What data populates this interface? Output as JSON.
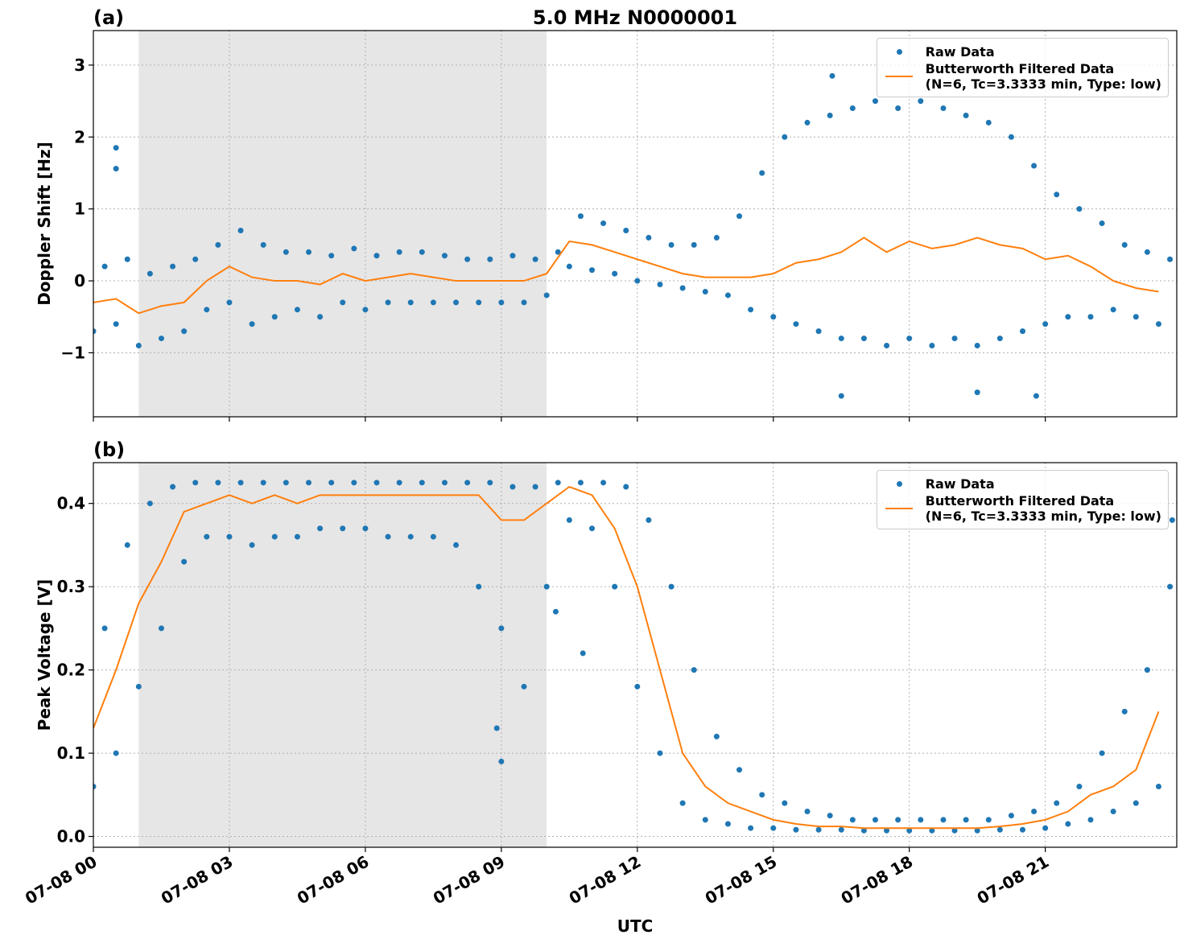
{
  "chart_data": [
    {
      "type": "scatter-line",
      "title": "5.0 MHz N0000001",
      "panel_label": "(a)",
      "ylabel": "Doppler Shift [Hz]",
      "xlim": [
        0,
        23.9
      ],
      "ylim": [
        -1.89,
        3.48
      ],
      "yticks": [
        {
          "value": -1,
          "label": "−1"
        },
        0,
        1,
        2,
        3
      ],
      "grid": true,
      "legend": "upper right",
      "shade": [
        1,
        10
      ],
      "shade_color": "#e6e6e6",
      "series": [
        {
          "name": "Raw Data",
          "color": "#1f77b4",
          "kind": "scatter",
          "x": [
            0,
            0.25,
            0.5,
            0.75,
            1,
            1.25,
            1.5,
            1.75,
            2,
            2.25,
            2.5,
            2.75,
            3,
            3.25,
            3.5,
            3.75,
            4,
            4.25,
            4.5,
            4.75,
            5,
            5.25,
            5.5,
            5.75,
            6,
            6.25,
            6.5,
            6.75,
            7,
            7.25,
            7.5,
            7.75,
            8,
            8.25,
            8.5,
            8.75,
            9,
            9.25,
            9.5,
            9.75,
            10,
            10.25,
            10.5,
            10.75,
            11,
            11.25,
            11.5,
            11.75,
            12,
            12.25,
            12.5,
            12.75,
            13,
            13.25,
            13.5,
            13.75,
            14,
            14.25,
            14.5,
            14.75,
            15,
            15.25,
            15.5,
            15.75,
            16,
            16.25,
            16.5,
            16.75,
            17,
            17.25,
            17.5,
            17.75,
            18,
            18.25,
            18.5,
            18.75,
            19,
            19.25,
            19.5,
            19.75,
            20,
            20.25,
            20.5,
            20.75,
            21,
            21.25,
            21.5,
            21.75,
            22,
            22.25,
            22.5,
            22.75,
            23,
            23.25,
            23.5,
            23.75,
            0.5,
            0.5,
            16.5,
            19.5,
            20.8,
            16.3
          ],
          "values": [
            -0.7,
            0.2,
            -0.6,
            0.3,
            -0.9,
            0.1,
            -0.8,
            0.2,
            -0.7,
            0.3,
            -0.4,
            0.5,
            -0.3,
            0.7,
            -0.6,
            0.5,
            -0.5,
            0.4,
            -0.4,
            0.4,
            -0.5,
            0.35,
            -0.3,
            0.45,
            -0.4,
            0.35,
            -0.3,
            0.4,
            -0.3,
            0.4,
            -0.3,
            0.35,
            -0.3,
            0.3,
            -0.3,
            0.3,
            -0.3,
            0.35,
            -0.3,
            0.3,
            -0.2,
            0.4,
            0.2,
            0.9,
            0.15,
            0.8,
            0.1,
            0.7,
            0.0,
            0.6,
            -0.05,
            0.5,
            -0.1,
            0.5,
            -0.15,
            0.6,
            -0.2,
            0.9,
            -0.4,
            1.5,
            -0.5,
            2.0,
            -0.6,
            2.2,
            -0.7,
            2.3,
            -0.8,
            2.4,
            -0.8,
            2.5,
            -0.9,
            2.4,
            -0.8,
            2.5,
            -0.9,
            2.4,
            -0.8,
            2.3,
            -0.9,
            2.2,
            -0.8,
            2.0,
            -0.7,
            1.6,
            -0.6,
            1.2,
            -0.5,
            1.0,
            -0.5,
            0.8,
            -0.4,
            0.5,
            -0.5,
            0.4,
            -0.6,
            0.3,
            1.85,
            1.56,
            -1.6,
            -1.55,
            -1.6,
            2.85
          ]
        },
        {
          "name": "Butterworth Filtered Data\n(N=6, Tc=3.3333 min, Type: low)",
          "color": "#ff7f0e",
          "kind": "line",
          "x": [
            0,
            0.5,
            1,
            1.5,
            2,
            2.5,
            3,
            3.5,
            4,
            4.5,
            5,
            5.5,
            6,
            6.5,
            7,
            7.5,
            8,
            8.5,
            9,
            9.5,
            10,
            10.5,
            11,
            11.5,
            12,
            12.5,
            13,
            13.5,
            14,
            14.5,
            15,
            15.5,
            16,
            16.5,
            17,
            17.5,
            18,
            18.5,
            19,
            19.5,
            20,
            20.5,
            21,
            21.5,
            22,
            22.5,
            23,
            23.5
          ],
          "values": [
            -0.3,
            -0.25,
            -0.45,
            -0.35,
            -0.3,
            0.0,
            0.2,
            0.05,
            0.0,
            0.0,
            -0.05,
            0.1,
            0.0,
            0.05,
            0.1,
            0.05,
            0.0,
            0.0,
            0.0,
            0.0,
            0.1,
            0.55,
            0.5,
            0.4,
            0.3,
            0.2,
            0.1,
            0.05,
            0.05,
            0.05,
            0.1,
            0.25,
            0.3,
            0.4,
            0.6,
            0.4,
            0.55,
            0.45,
            0.5,
            0.6,
            0.5,
            0.45,
            0.3,
            0.35,
            0.2,
            0.0,
            -0.1,
            -0.15
          ]
        }
      ]
    },
    {
      "type": "scatter-line",
      "panel_label": "(b)",
      "ylabel": "Peak Voltage [V]",
      "xlabel": "UTC",
      "xlim": [
        0,
        23.9
      ],
      "ylim": [
        -0.013,
        0.449
      ],
      "xticks": [
        {
          "value": 0,
          "label": "07-08 00"
        },
        {
          "value": 3,
          "label": "07-08 03"
        },
        {
          "value": 6,
          "label": "07-08 06"
        },
        {
          "value": 9,
          "label": "07-08 09"
        },
        {
          "value": 12,
          "label": "07-08 12"
        },
        {
          "value": 15,
          "label": "07-08 15"
        },
        {
          "value": 18,
          "label": "07-08 18"
        },
        {
          "value": 21,
          "label": "07-08 21"
        }
      ],
      "yticks": [
        {
          "value": 0,
          "label": "0.0"
        },
        0.1,
        0.2,
        0.3,
        0.4
      ],
      "grid": true,
      "legend": "upper right",
      "shade": [
        1,
        10
      ],
      "shade_color": "#e6e6e6",
      "series": [
        {
          "name": "Raw Data",
          "color": "#1f77b4",
          "kind": "scatter",
          "x": [
            0,
            0.25,
            0.5,
            0.75,
            1,
            1.25,
            1.5,
            1.75,
            2,
            2.25,
            2.5,
            2.75,
            3,
            3.25,
            3.5,
            3.75,
            4,
            4.25,
            4.5,
            4.75,
            5,
            5.25,
            5.5,
            5.75,
            6,
            6.25,
            6.5,
            6.75,
            7,
            7.25,
            7.5,
            7.75,
            8,
            8.25,
            8.5,
            8.75,
            9,
            9.25,
            9.5,
            9.75,
            10,
            10.25,
            10.5,
            10.75,
            11,
            11.25,
            11.5,
            11.75,
            12,
            12.25,
            12.5,
            12.75,
            13,
            13.25,
            13.5,
            13.75,
            14,
            14.25,
            14.5,
            14.75,
            15,
            15.25,
            15.5,
            15.75,
            16,
            16.25,
            16.5,
            16.75,
            17,
            17.25,
            17.5,
            17.75,
            18,
            18.25,
            18.5,
            18.75,
            19,
            19.25,
            19.5,
            19.75,
            20,
            20.25,
            20.5,
            20.75,
            21,
            21.25,
            21.5,
            21.75,
            22,
            22.25,
            22.5,
            22.75,
            23,
            23.25,
            23.5,
            23.75,
            8.9,
            9.0,
            10.2,
            10.8,
            23.8
          ],
          "values": [
            0.06,
            0.25,
            0.1,
            0.35,
            0.18,
            0.4,
            0.25,
            0.42,
            0.33,
            0.425,
            0.36,
            0.425,
            0.36,
            0.425,
            0.35,
            0.425,
            0.36,
            0.425,
            0.36,
            0.425,
            0.37,
            0.425,
            0.37,
            0.425,
            0.37,
            0.425,
            0.36,
            0.425,
            0.36,
            0.425,
            0.36,
            0.425,
            0.35,
            0.425,
            0.3,
            0.425,
            0.25,
            0.42,
            0.18,
            0.42,
            0.3,
            0.425,
            0.38,
            0.425,
            0.37,
            0.425,
            0.3,
            0.42,
            0.18,
            0.38,
            0.1,
            0.3,
            0.04,
            0.2,
            0.02,
            0.12,
            0.015,
            0.08,
            0.01,
            0.05,
            0.01,
            0.04,
            0.008,
            0.03,
            0.008,
            0.025,
            0.008,
            0.02,
            0.007,
            0.02,
            0.007,
            0.02,
            0.007,
            0.02,
            0.007,
            0.02,
            0.007,
            0.02,
            0.007,
            0.02,
            0.008,
            0.025,
            0.008,
            0.03,
            0.01,
            0.04,
            0.015,
            0.06,
            0.02,
            0.1,
            0.03,
            0.15,
            0.04,
            0.2,
            0.06,
            0.3,
            0.13,
            0.09,
            0.27,
            0.22,
            0.38
          ]
        },
        {
          "name": "Butterworth Filtered Data\n(N=6, Tc=3.3333 min, Type: low)",
          "color": "#ff7f0e",
          "kind": "line",
          "x": [
            0,
            0.5,
            1,
            1.5,
            2,
            2.5,
            3,
            3.5,
            4,
            4.5,
            5,
            5.5,
            6,
            6.5,
            7,
            7.5,
            8,
            8.5,
            9,
            9.5,
            10,
            10.5,
            11,
            11.5,
            12,
            12.5,
            13,
            13.5,
            14,
            14.5,
            15,
            15.5,
            16,
            16.5,
            17,
            17.5,
            18,
            18.5,
            19,
            19.5,
            20,
            20.5,
            21,
            21.5,
            22,
            22.5,
            23,
            23.5
          ],
          "values": [
            0.13,
            0.2,
            0.28,
            0.33,
            0.39,
            0.4,
            0.41,
            0.4,
            0.41,
            0.4,
            0.41,
            0.41,
            0.41,
            0.41,
            0.41,
            0.41,
            0.41,
            0.41,
            0.38,
            0.38,
            0.4,
            0.42,
            0.41,
            0.37,
            0.3,
            0.2,
            0.1,
            0.06,
            0.04,
            0.03,
            0.02,
            0.015,
            0.012,
            0.012,
            0.01,
            0.01,
            0.01,
            0.01,
            0.01,
            0.01,
            0.012,
            0.015,
            0.02,
            0.03,
            0.05,
            0.06,
            0.08,
            0.15
          ]
        }
      ]
    }
  ]
}
